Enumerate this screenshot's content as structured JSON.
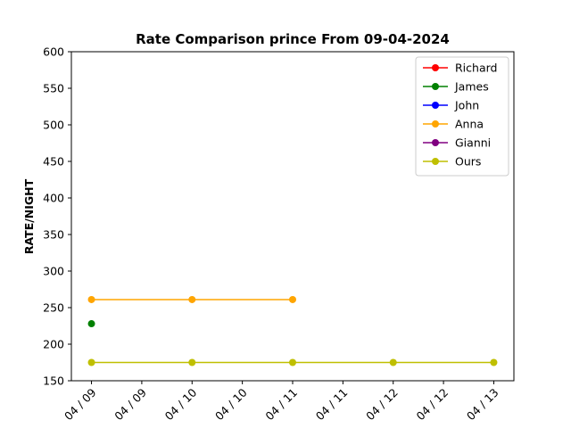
{
  "chart_data": {
    "type": "line",
    "title": "Rate Comparison prince From 09-04-2024",
    "xlabel": "",
    "ylabel": "RATE/NIGHT",
    "x_tick_labels": [
      "04 / 09",
      "04 / 09",
      "04 / 10",
      "04 / 10",
      "04 / 11",
      "04 / 11",
      "04 / 12",
      "04 / 12",
      "04 / 13"
    ],
    "x_tick_values": [
      0,
      0.5,
      1,
      1.5,
      2,
      2.5,
      3,
      3.5,
      4
    ],
    "xlim": [
      -0.2,
      4.2
    ],
    "ylim": [
      150,
      600
    ],
    "y_ticks": [
      150,
      200,
      250,
      300,
      350,
      400,
      450,
      500,
      550,
      600
    ],
    "grid": false,
    "legend_position": "top-right",
    "series": [
      {
        "name": "Richard",
        "color": "#ff0000",
        "points": []
      },
      {
        "name": "James",
        "color": "#008000",
        "points": [
          [
            0,
            228
          ]
        ]
      },
      {
        "name": "John",
        "color": "#0000ff",
        "points": []
      },
      {
        "name": "Anna",
        "color": "#ffa500",
        "points": [
          [
            0,
            261
          ],
          [
            1,
            261
          ],
          [
            2,
            261
          ]
        ]
      },
      {
        "name": "Gianni",
        "color": "#800080",
        "points": []
      },
      {
        "name": "Ours",
        "color": "#bfbf00",
        "points": [
          [
            0,
            175
          ],
          [
            1,
            175
          ],
          [
            2,
            175
          ],
          [
            3,
            175
          ],
          [
            4,
            175
          ]
        ]
      }
    ]
  }
}
